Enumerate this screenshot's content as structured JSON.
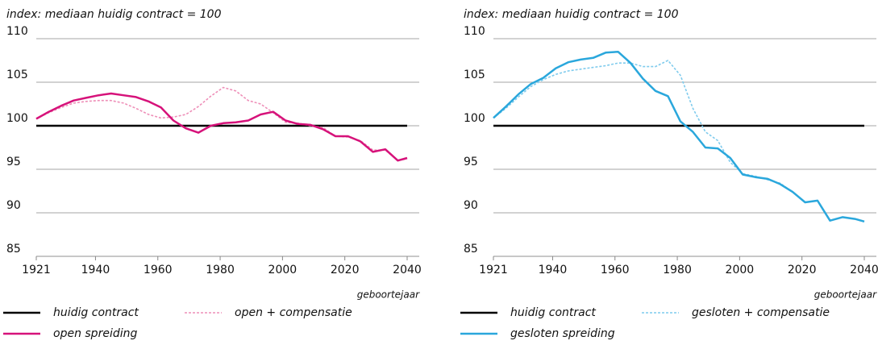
{
  "chart_data": [
    {
      "type": "line",
      "title": "index: mediaan huidig contract = 100",
      "x_label": "geboortejaar",
      "x": [
        1921,
        1925,
        1929,
        1933,
        1937,
        1941,
        1945,
        1949,
        1953,
        1957,
        1961,
        1965,
        1969,
        1973,
        1977,
        1981,
        1985,
        1989,
        1993,
        1997,
        2001,
        2005,
        2009,
        2013,
        2017,
        2021,
        2025,
        2029,
        2033,
        2037,
        2040
      ],
      "xlim": [
        1921,
        2040
      ],
      "xticks": [
        1921,
        1940,
        1960,
        1980,
        2000,
        2020,
        2040
      ],
      "ylim": [
        85,
        110
      ],
      "yticks": [
        85,
        90,
        95,
        100,
        105,
        110
      ],
      "grid": true,
      "series": [
        {
          "name": "huidig contract",
          "color": "#000000",
          "line_style": "solid",
          "values": [
            100,
            100,
            100,
            100,
            100,
            100,
            100,
            100,
            100,
            100,
            100,
            100,
            100,
            100,
            100,
            100,
            100,
            100,
            100,
            100,
            100,
            100,
            100,
            100,
            100,
            100,
            100,
            100,
            100,
            100,
            100
          ]
        },
        {
          "name": "open spreiding",
          "color": "#d6127a",
          "line_style": "solid",
          "values": [
            100.8,
            101.6,
            102.3,
            102.9,
            103.2,
            103.5,
            103.7,
            103.5,
            103.3,
            102.8,
            102.1,
            100.6,
            99.7,
            99.2,
            100.0,
            100.3,
            100.4,
            100.6,
            101.3,
            101.6,
            100.6,
            100.2,
            100.1,
            99.6,
            98.8,
            98.8,
            98.2,
            97.0,
            97.3,
            96.0,
            96.3
          ]
        },
        {
          "name": "open + compensatie",
          "color": "#ee8fb8",
          "line_style": "dotted",
          "values": [
            100.8,
            101.5,
            102.1,
            102.6,
            102.8,
            102.9,
            102.9,
            102.6,
            102.0,
            101.3,
            100.9,
            101.0,
            101.3,
            102.2,
            103.4,
            104.4,
            104.0,
            102.9,
            102.5,
            101.5,
            100.4,
            100.3,
            100.0,
            99.8,
            98.8,
            98.7,
            98.3,
            97.2,
            97.2,
            96.0,
            96.2
          ]
        }
      ]
    },
    {
      "type": "line",
      "title": "index: mediaan huidig contract = 100",
      "x_label": "geboortejaar",
      "x": [
        1921,
        1925,
        1929,
        1933,
        1937,
        1941,
        1945,
        1949,
        1953,
        1957,
        1961,
        1965,
        1969,
        1973,
        1977,
        1981,
        1985,
        1989,
        1993,
        1997,
        2001,
        2005,
        2009,
        2013,
        2017,
        2021,
        2025,
        2029,
        2033,
        2037,
        2040
      ],
      "xlim": [
        1921,
        2040
      ],
      "xticks": [
        1921,
        1940,
        1960,
        1980,
        2000,
        2020,
        2040
      ],
      "ylim": [
        85,
        110
      ],
      "yticks": [
        85,
        90,
        95,
        100,
        105,
        110
      ],
      "grid": true,
      "series": [
        {
          "name": "huidig contract",
          "color": "#000000",
          "line_style": "solid",
          "values": [
            100,
            100,
            100,
            100,
            100,
            100,
            100,
            100,
            100,
            100,
            100,
            100,
            100,
            100,
            100,
            100,
            100,
            100,
            100,
            100,
            100,
            100,
            100,
            100,
            100,
            100,
            100,
            100,
            100,
            100,
            100
          ]
        },
        {
          "name": "gesloten spreiding",
          "color": "#2aa7dc",
          "line_style": "solid",
          "values": [
            100.9,
            102.2,
            103.6,
            104.8,
            105.5,
            106.6,
            107.3,
            107.6,
            107.8,
            108.4,
            108.5,
            107.2,
            105.4,
            104.0,
            103.4,
            100.5,
            99.3,
            97.5,
            97.4,
            96.3,
            94.4,
            94.1,
            93.9,
            93.3,
            92.4,
            91.2,
            91.4,
            89.1,
            89.5,
            89.3,
            89.0
          ]
        },
        {
          "name": "gesloten + compensatie",
          "color": "#7fcbed",
          "line_style": "dotted",
          "values": [
            100.9,
            102.0,
            103.3,
            104.5,
            105.3,
            105.9,
            106.3,
            106.5,
            106.7,
            106.9,
            107.2,
            107.2,
            106.8,
            106.8,
            107.5,
            105.8,
            102.0,
            99.3,
            98.3,
            95.8,
            94.5,
            94.2,
            93.8,
            93.4,
            92.4,
            91.2,
            91.4,
            89.1,
            89.5,
            89.3,
            89.0
          ]
        }
      ]
    }
  ]
}
